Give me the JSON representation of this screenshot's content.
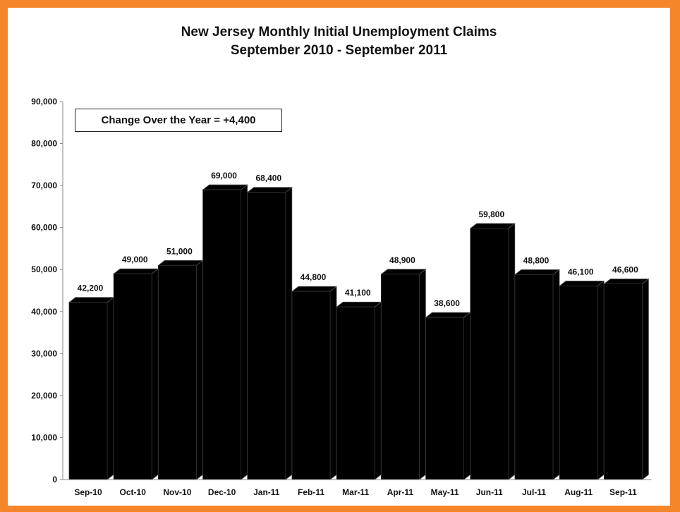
{
  "chart_data": {
    "type": "bar",
    "title": "New Jersey Monthly Initial Unemployment Claims",
    "subtitle": "September 2010 - September 2011",
    "annotation": "Change Over the Year = +4,400",
    "categories": [
      "Sep-10",
      "Oct-10",
      "Nov-10",
      "Dec-10",
      "Jan-11",
      "Feb-11",
      "Mar-11",
      "Apr-11",
      "May-11",
      "Jun-11",
      "Jul-11",
      "Aug-11",
      "Sep-11"
    ],
    "values": [
      42200,
      49000,
      51000,
      69000,
      68400,
      44800,
      41100,
      48900,
      38600,
      59800,
      48800,
      46100,
      46600
    ],
    "data_labels": [
      "42,200",
      "49,000",
      "51,000",
      "69,000",
      "68,400",
      "44,800",
      "41,100",
      "48,900",
      "38,600",
      "59,800",
      "48,800",
      "46,100",
      "46,600"
    ],
    "ylim": [
      0,
      90000
    ],
    "yticks": [
      0,
      10000,
      20000,
      30000,
      40000,
      50000,
      60000,
      70000,
      80000,
      90000
    ],
    "ytick_labels": [
      "0",
      "10,000",
      "20,000",
      "30,000",
      "40,000",
      "50,000",
      "60,000",
      "70,000",
      "80,000",
      "90,000"
    ],
    "grid": false,
    "bar_color": "#000000",
    "style": "3d"
  },
  "colors": {
    "border": "#F5862A",
    "background": "#FFFFFF",
    "bars": "#000000"
  }
}
